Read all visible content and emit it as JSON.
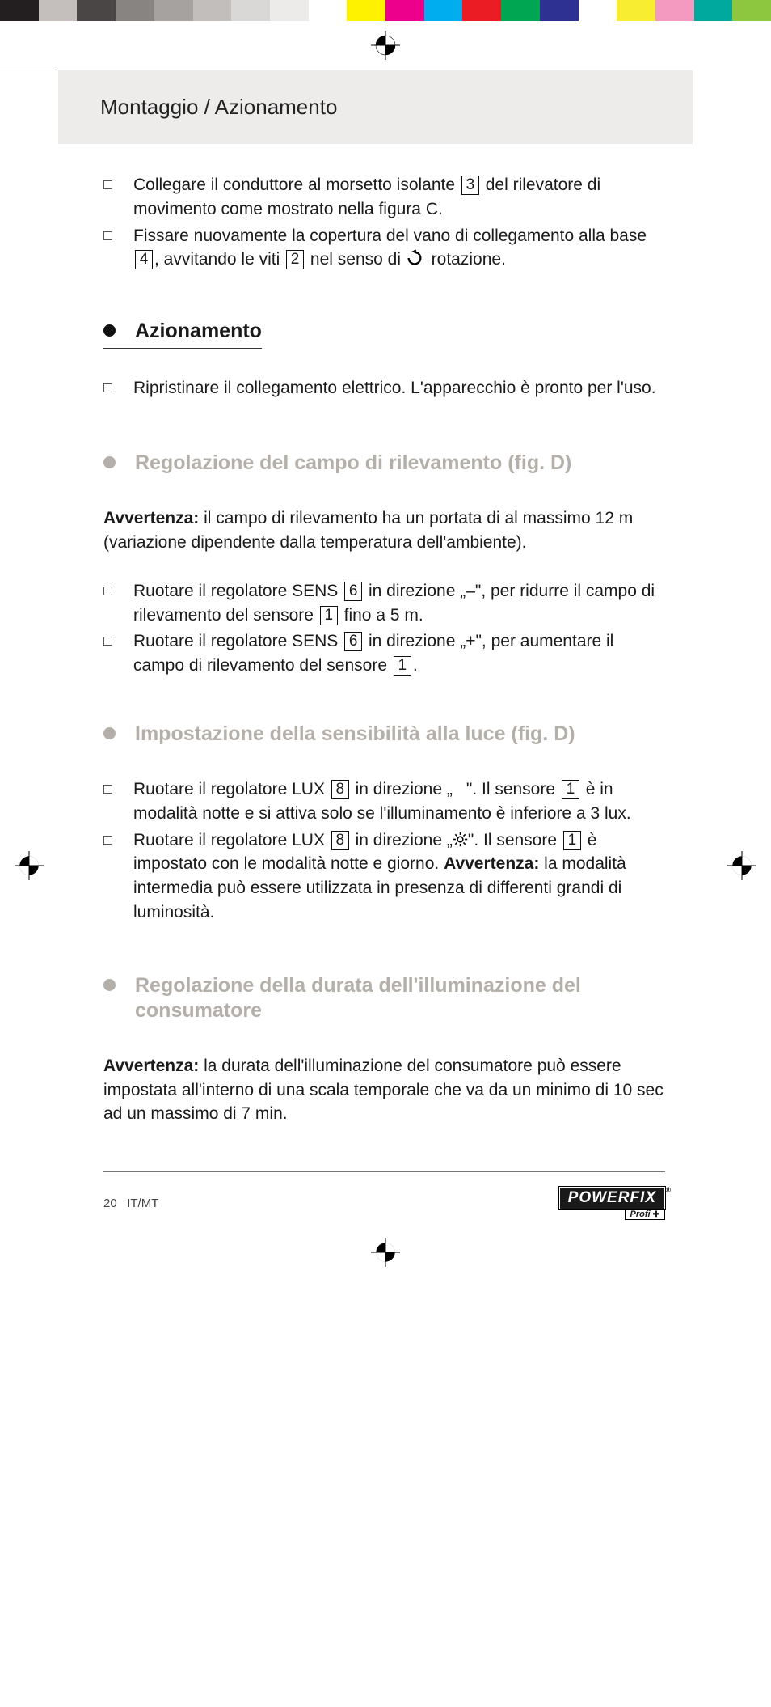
{
  "colorbar": [
    "#231f20",
    "#c4bfbd",
    "#4a4645",
    "#888482",
    "#a5a2a0",
    "#c1bebc",
    "#dad8d6",
    "#ecebea",
    "#ffffff",
    "#fff200",
    "#ec008c",
    "#00aeef",
    "#ec1c24",
    "#00a651",
    "#2e3192",
    "#ffffff",
    "#f9ed32",
    "#f49ac1",
    "#00a99d",
    "#8dc63f"
  ],
  "header": {
    "title": "Montaggio / Azionamento"
  },
  "sec1": {
    "items": [
      {
        "parts": [
          {
            "t": "text",
            "v": "Collegare il conduttore al morsetto isolante "
          },
          {
            "t": "ref",
            "v": "3"
          },
          {
            "t": "text",
            "v": " del rilevatore di movimento come mostrato nella figura C."
          }
        ]
      },
      {
        "parts": [
          {
            "t": "text",
            "v": "Fissare nuovamente la copertura del vano di collegamento alla base "
          },
          {
            "t": "ref",
            "v": "4"
          },
          {
            "t": "text",
            "v": ", avvitando le viti "
          },
          {
            "t": "ref",
            "v": "2"
          },
          {
            "t": "text",
            "v": " nel senso di "
          },
          {
            "t": "rot"
          },
          {
            "t": "text",
            "v": " rotazione."
          }
        ]
      }
    ]
  },
  "sec2": {
    "title": "Azionamento",
    "items": [
      {
        "parts": [
          {
            "t": "text",
            "v": "Ripristinare il collegamento elettrico. L'apparecchio è pronto per l'uso."
          }
        ]
      }
    ]
  },
  "sec3": {
    "title": "Regolazione del campo di rilevamento (fig. D)",
    "note_label": "Avvertenza:",
    "note": " il campo di rilevamento ha un portata di al massimo 12 m (variazione dipendente dalla temperatura dell'ambiente).",
    "items": [
      {
        "parts": [
          {
            "t": "text",
            "v": "Ruotare il regolatore SENS "
          },
          {
            "t": "ref",
            "v": "6"
          },
          {
            "t": "text",
            "v": " in direzione „–\", per ridurre il campo di rilevamento del sensore "
          },
          {
            "t": "ref",
            "v": "1"
          },
          {
            "t": "text",
            "v": " fino a 5 m."
          }
        ]
      },
      {
        "parts": [
          {
            "t": "text",
            "v": "Ruotare il regolatore SENS "
          },
          {
            "t": "ref",
            "v": "6"
          },
          {
            "t": "text",
            "v": " in direzione „+\", per aumentare il campo di rilevamento del sensore "
          },
          {
            "t": "ref",
            "v": "1"
          },
          {
            "t": "text",
            "v": "."
          }
        ]
      }
    ]
  },
  "sec4": {
    "title": "Impostazione della sensibilità alla luce (fig. D)",
    "items": [
      {
        "parts": [
          {
            "t": "text",
            "v": "Ruotare il regolatore LUX "
          },
          {
            "t": "ref",
            "v": "8"
          },
          {
            "t": "text",
            "v": " in direzione „"
          },
          {
            "t": "moon"
          },
          {
            "t": "text",
            "v": "\". Il sensore "
          },
          {
            "t": "ref",
            "v": "1"
          },
          {
            "t": "text",
            "v": " è in modalità notte e si attiva solo se l'illuminamento è inferiore a 3 lux."
          }
        ]
      },
      {
        "parts": [
          {
            "t": "text",
            "v": "Ruotare il regolatore LUX "
          },
          {
            "t": "ref",
            "v": "8"
          },
          {
            "t": "text",
            "v": " in direzione „"
          },
          {
            "t": "sun"
          },
          {
            "t": "text",
            "v": "\". Il sensore "
          },
          {
            "t": "ref",
            "v": "1"
          },
          {
            "t": "text",
            "v": " è impostato con le modalità notte e giorno. "
          },
          {
            "t": "bold",
            "v": "Avvertenza:"
          },
          {
            "t": "text",
            "v": " la modalità intermedia può essere utilizzata in presenza di differenti grandi di luminosità."
          }
        ]
      }
    ]
  },
  "sec5": {
    "title": "Regolazione della durata dell'illuminazione del consumatore",
    "note_label": "Avvertenza:",
    "note": " la durata dell'illuminazione del consumatore può essere impostata all'interno di una scala temporale che va da un minimo di 10 sec ad un massimo di 7 min."
  },
  "footer": {
    "page": "20",
    "lang": "IT/MT",
    "logo_main": "POWERFIX",
    "logo_sub": "Profi"
  }
}
